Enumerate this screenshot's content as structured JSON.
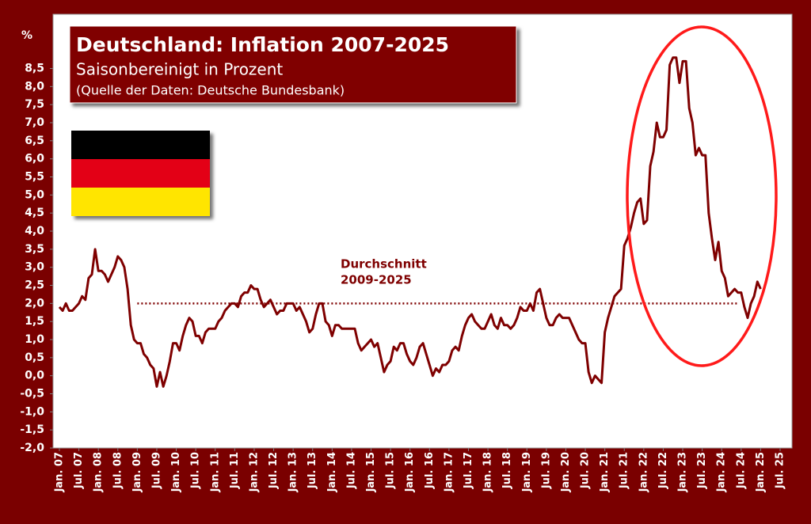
{
  "chart_data": {
    "type": "line",
    "title": "Deutschland: Inflation 2007-2025",
    "subtitle": "Saisonbereinigt in Prozent",
    "source": "(Quelle der Daten: Deutsche Bundesbank)",
    "y_label": "%",
    "ylim": [
      -2,
      10
    ],
    "yticks": [
      {
        "value": -2,
        "label": "-2,0"
      },
      {
        "value": -1.5,
        "label": "-1,5"
      },
      {
        "value": -1,
        "label": "-1,0"
      },
      {
        "value": -0.5,
        "label": "-0,5"
      },
      {
        "value": 0,
        "label": "0,0"
      },
      {
        "value": 0.5,
        "label": "0,5"
      },
      {
        "value": 1,
        "label": "1,0"
      },
      {
        "value": 1.5,
        "label": "1,5"
      },
      {
        "value": 2,
        "label": "2,0"
      },
      {
        "value": 2.5,
        "label": "2,5"
      },
      {
        "value": 3,
        "label": "3,0"
      },
      {
        "value": 3.5,
        "label": "3,5"
      },
      {
        "value": 4,
        "label": "4,0"
      },
      {
        "value": 4.5,
        "label": "4,5"
      },
      {
        "value": 5,
        "label": "5,0"
      },
      {
        "value": 5.5,
        "label": "5,5"
      },
      {
        "value": 6,
        "label": "6,0"
      },
      {
        "value": 6.5,
        "label": "6,5"
      },
      {
        "value": 7,
        "label": "7,0"
      },
      {
        "value": 7.5,
        "label": "7,5"
      },
      {
        "value": 8,
        "label": "8,0"
      },
      {
        "value": 8.5,
        "label": "8,5"
      }
    ],
    "average": {
      "value": 2,
      "label": [
        "Durchschnitt",
        "2009-2025"
      ]
    },
    "categories": [
      "Jan. 07",
      null,
      null,
      null,
      null,
      null,
      "Jul. 07",
      null,
      null,
      null,
      null,
      null,
      "Jan. 08",
      null,
      null,
      null,
      null,
      null,
      "Jul. 08",
      null,
      null,
      null,
      null,
      null,
      "Jan. 09",
      null,
      null,
      null,
      null,
      null,
      "Jul. 09",
      null,
      null,
      null,
      null,
      null,
      "Jan. 10",
      null,
      null,
      null,
      null,
      null,
      "Jul. 10",
      null,
      null,
      null,
      null,
      null,
      "Jan. 11",
      null,
      null,
      null,
      null,
      null,
      "Jul. 11",
      null,
      null,
      null,
      null,
      null,
      "Jan. 12",
      null,
      null,
      null,
      null,
      null,
      "Jul. 12",
      null,
      null,
      null,
      null,
      null,
      "Jan. 13",
      null,
      null,
      null,
      null,
      null,
      "Jul. 13",
      null,
      null,
      null,
      null,
      null,
      "Jan. 14",
      null,
      null,
      null,
      null,
      null,
      "Jul. 14",
      null,
      null,
      null,
      null,
      null,
      "Jan. 15",
      null,
      null,
      null,
      null,
      null,
      "Jul. 15",
      null,
      null,
      null,
      null,
      null,
      "Jan. 16",
      null,
      null,
      null,
      null,
      null,
      "Jul. 16",
      null,
      null,
      null,
      null,
      null,
      "Jan. 17",
      null,
      null,
      null,
      null,
      null,
      "Jul. 17",
      null,
      null,
      null,
      null,
      null,
      "Jan. 18",
      null,
      null,
      null,
      null,
      null,
      "Jul. 18",
      null,
      null,
      null,
      null,
      null,
      "Jan. 19",
      null,
      null,
      null,
      null,
      null,
      "Jul. 19",
      null,
      null,
      null,
      null,
      null,
      "Jan. 20",
      null,
      null,
      null,
      null,
      null,
      "Jul. 20",
      null,
      null,
      null,
      null,
      null,
      "Jan. 21",
      null,
      null,
      null,
      null,
      null,
      "Jul. 21",
      null,
      null,
      null,
      null,
      null,
      "Jan. 22",
      null,
      null,
      null,
      null,
      null,
      "Jul. 22",
      null,
      null,
      null,
      null,
      null,
      "Jan. 23",
      null,
      null,
      null,
      null,
      null,
      "Jul. 23",
      null,
      null,
      null,
      null,
      null,
      "Jan. 24",
      null,
      null,
      null,
      null,
      null,
      "Jul. 24",
      null,
      null,
      null,
      null,
      null,
      "Jan. 25",
      null,
      null,
      null,
      null,
      null,
      "Jul. 25"
    ],
    "color": "#7f0000",
    "values": [
      1.9,
      1.8,
      2.0,
      1.8,
      1.8,
      1.9,
      2.0,
      2.2,
      2.1,
      2.7,
      2.8,
      3.5,
      2.9,
      2.9,
      2.8,
      2.6,
      2.8,
      3.0,
      3.3,
      3.2,
      3.0,
      2.4,
      1.4,
      1.0,
      0.9,
      0.9,
      0.6,
      0.5,
      0.3,
      0.2,
      -0.3,
      0.1,
      -0.3,
      0.0,
      0.4,
      0.9,
      0.9,
      0.7,
      1.1,
      1.4,
      1.6,
      1.5,
      1.1,
      1.1,
      0.9,
      1.2,
      1.3,
      1.3,
      1.3,
      1.5,
      1.6,
      1.8,
      1.9,
      2.0,
      2.0,
      1.9,
      2.2,
      2.3,
      2.3,
      2.5,
      2.4,
      2.4,
      2.1,
      1.9,
      2.0,
      2.1,
      1.9,
      1.7,
      1.8,
      1.8,
      2.0,
      2.0,
      2.0,
      1.8,
      1.9,
      1.7,
      1.5,
      1.2,
      1.3,
      1.7,
      2.0,
      2.0,
      1.5,
      1.4,
      1.1,
      1.4,
      1.4,
      1.3,
      1.3,
      1.3,
      1.3,
      1.3,
      0.9,
      0.7,
      0.8,
      0.9,
      1.0,
      0.8,
      0.9,
      0.5,
      0.1,
      0.3,
      0.4,
      0.8,
      0.7,
      0.9,
      0.9,
      0.6,
      0.4,
      0.3,
      0.5,
      0.8,
      0.9,
      0.6,
      0.3,
      0.0,
      0.2,
      0.1,
      0.3,
      0.3,
      0.4,
      0.7,
      0.8,
      0.7,
      1.1,
      1.4,
      1.6,
      1.7,
      1.5,
      1.4,
      1.3,
      1.3,
      1.5,
      1.7,
      1.4,
      1.3,
      1.6,
      1.4,
      1.4,
      1.3,
      1.4,
      1.6,
      1.9,
      1.8,
      1.8,
      2.0,
      1.8,
      2.3,
      2.4,
      2.0,
      1.6,
      1.4,
      1.4,
      1.6,
      1.7,
      1.6,
      1.6,
      1.6,
      1.4,
      1.2,
      1.0,
      0.9,
      0.9,
      0.1,
      -0.2,
      0.0,
      -0.1,
      -0.2,
      1.2,
      1.6,
      1.9,
      2.2,
      2.3,
      2.4,
      3.6,
      3.8,
      4.1,
      4.5,
      4.8,
      4.9,
      4.2,
      4.3,
      5.8,
      6.2,
      7.0,
      6.6,
      6.6,
      6.8,
      8.6,
      8.8,
      8.8,
      8.1,
      8.7,
      8.7,
      7.4,
      7.0,
      6.1,
      6.3,
      6.1,
      6.1,
      4.5,
      3.8,
      3.2,
      3.7,
      2.9,
      2.7,
      2.2,
      2.3,
      2.4,
      2.3,
      2.3,
      1.9,
      1.6,
      2.0,
      2.2,
      2.6,
      2.4,
      null,
      null,
      null,
      null,
      null,
      null
    ]
  }
}
